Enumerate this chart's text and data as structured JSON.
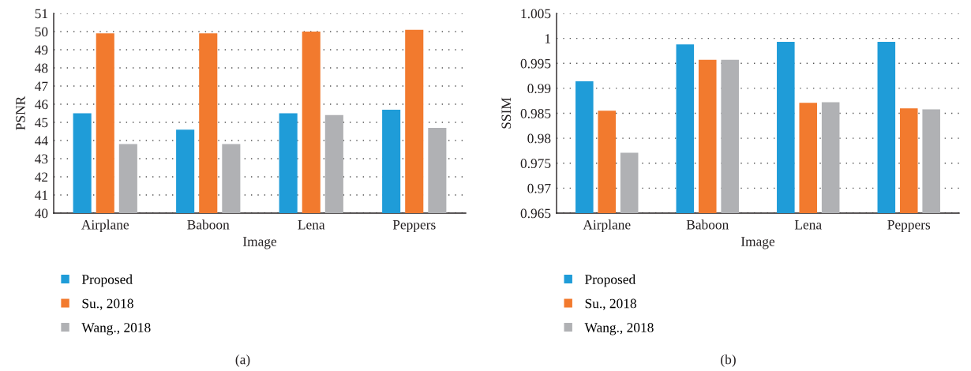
{
  "chart_data": [
    {
      "type": "bar",
      "categories": [
        "Airplane",
        "Baboon",
        "Lena",
        "Peppers"
      ],
      "xlabel": "Image",
      "ylabel": "PSNR",
      "ylim": [
        40,
        51
      ],
      "yticks": [
        40,
        41,
        42,
        43,
        44,
        45,
        46,
        47,
        48,
        49,
        50,
        51
      ],
      "grid": "y",
      "legend": "bottom",
      "annotations": [
        "(a)"
      ],
      "series": [
        {
          "name": "Proposed",
          "color": "#1f9cd8",
          "values": [
            45.5,
            44.6,
            45.5,
            45.7
          ]
        },
        {
          "name": "Su., 2018",
          "color": "#f27a2e",
          "values": [
            49.9,
            49.9,
            50.0,
            50.1
          ]
        },
        {
          "name": "Wang., 2018",
          "color": "#b0b1b4",
          "values": [
            43.8,
            43.8,
            45.4,
            44.7
          ]
        }
      ]
    },
    {
      "type": "bar",
      "categories": [
        "Airplane",
        "Baboon",
        "Lena",
        "Peppers"
      ],
      "xlabel": "Image",
      "ylabel": "SSIM",
      "ylim": [
        0.965,
        1.005
      ],
      "yticks": [
        0.965,
        0.97,
        0.975,
        0.98,
        0.985,
        0.99,
        0.995,
        1,
        1.005
      ],
      "grid": "y",
      "legend": "bottom",
      "annotations": [
        "(b)"
      ],
      "series": [
        {
          "name": "Proposed",
          "color": "#1f9cd8",
          "values": [
            0.9914,
            0.9988,
            0.9993,
            0.9993
          ]
        },
        {
          "name": "Su., 2018",
          "color": "#f27a2e",
          "values": [
            0.9855,
            0.9957,
            0.9871,
            0.986
          ]
        },
        {
          "name": "Wang., 2018",
          "color": "#b0b1b4",
          "values": [
            0.9771,
            0.9957,
            0.9872,
            0.9858
          ]
        }
      ]
    }
  ]
}
